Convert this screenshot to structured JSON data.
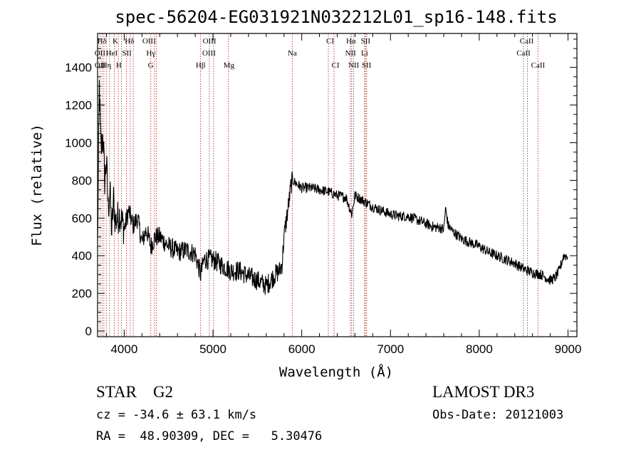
{
  "chart_data": {
    "type": "line",
    "title": "spec-56204-EG031921N032212L01_sp16-148.fits",
    "xlabel": "Wavelength (Å)",
    "ylabel": "Flux (relative)",
    "xlim": [
      3700,
      9100
    ],
    "ylim": [
      -30,
      1580
    ],
    "x_ticks": [
      4000,
      5000,
      6000,
      7000,
      8000,
      9000
    ],
    "x_tick_labels": [
      "4000",
      "5000",
      "6000",
      "7000",
      "8000",
      "9000"
    ],
    "y_ticks": [
      0,
      200,
      400,
      600,
      800,
      1000,
      1200,
      1400
    ],
    "y_tick_labels": [
      "0",
      "200",
      "400",
      "600",
      "800",
      "1000",
      "1200",
      "1400"
    ],
    "series": [
      {
        "name": "flux",
        "x": [
          3700,
          3720,
          3740,
          3760,
          3780,
          3800,
          3820,
          3840,
          3860,
          3880,
          3900,
          3950,
          4000,
          4050,
          4100,
          4150,
          4200,
          4250,
          4300,
          4350,
          4400,
          4500,
          4600,
          4700,
          4800,
          4861,
          4900,
          5000,
          5100,
          5200,
          5300,
          5400,
          5500,
          5600,
          5700,
          5750,
          5780,
          5800,
          5830,
          5860,
          5880,
          5900,
          5920,
          6000,
          6100,
          6200,
          6300,
          6400,
          6500,
          6563,
          6600,
          6700,
          6800,
          6900,
          7000,
          7100,
          7200,
          7300,
          7400,
          7500,
          7550,
          7600,
          7620,
          7650,
          7700,
          7800,
          7900,
          8000,
          8100,
          8200,
          8300,
          8400,
          8500,
          8600,
          8700,
          8800,
          8850,
          8900,
          8950,
          9000
        ],
        "y": [
          450,
          1300,
          950,
          1050,
          800,
          900,
          650,
          750,
          520,
          700,
          580,
          620,
          540,
          640,
          560,
          600,
          470,
          540,
          450,
          500,
          500,
          450,
          420,
          430,
          410,
          300,
          380,
          380,
          350,
          320,
          320,
          290,
          270,
          240,
          300,
          320,
          360,
          500,
          600,
          700,
          780,
          800,
          790,
          760,
          760,
          750,
          740,
          720,
          710,
          620,
          720,
          690,
          660,
          640,
          620,
          610,
          610,
          590,
          570,
          550,
          550,
          540,
          650,
          560,
          530,
          490,
          470,
          450,
          420,
          400,
          380,
          360,
          330,
          310,
          300,
          270,
          280,
          320,
          400,
          400
        ]
      }
    ],
    "line_markers": [
      {
        "label": "Hδ",
        "x": 3750,
        "row": 0
      },
      {
        "label": "K",
        "x": 3900,
        "row": 0
      },
      {
        "label": "Hδ",
        "x": 4060,
        "row": 0
      },
      {
        "label": "OIII",
        "x": 4280,
        "row": 0
      },
      {
        "label": "OIII",
        "x": 4960,
        "row": 0
      },
      {
        "label": "CI",
        "x": 6320,
        "row": 0
      },
      {
        "label": "Hα",
        "x": 6555,
        "row": 0
      },
      {
        "label": "SII",
        "x": 6720,
        "row": 0
      },
      {
        "label": "CaII",
        "x": 8535,
        "row": 0
      },
      {
        "label": "OII",
        "x": 3727,
        "row": 1
      },
      {
        "label": "HeI",
        "x": 3860,
        "row": 1
      },
      {
        "label": "SII",
        "x": 4030,
        "row": 1
      },
      {
        "label": "Hγ",
        "x": 4300,
        "row": 1
      },
      {
        "label": "OIII",
        "x": 4955,
        "row": 1
      },
      {
        "label": "Na",
        "x": 5893,
        "row": 1
      },
      {
        "label": "NII",
        "x": 6550,
        "row": 1
      },
      {
        "label": "Li",
        "x": 6708,
        "row": 1
      },
      {
        "label": "CaII",
        "x": 8498,
        "row": 1
      },
      {
        "label": "OII",
        "x": 3728,
        "row": 2
      },
      {
        "label": "Hη",
        "x": 3800,
        "row": 2
      },
      {
        "label": "H",
        "x": 3940,
        "row": 2
      },
      {
        "label": "G",
        "x": 4300,
        "row": 2
      },
      {
        "label": "Hβ",
        "x": 4861,
        "row": 2
      },
      {
        "label": "Mg",
        "x": 5180,
        "row": 2
      },
      {
        "label": "CI",
        "x": 6380,
        "row": 2
      },
      {
        "label": "NII",
        "x": 6585,
        "row": 2
      },
      {
        "label": "SII",
        "x": 6730,
        "row": 2
      },
      {
        "label": "CaII",
        "x": 8662,
        "row": 2
      }
    ],
    "marker_lines_x": [
      3727,
      3750,
      3771,
      3798,
      3835,
      3889,
      3934,
      3969,
      4026,
      4068,
      4102,
      4300,
      4341,
      4363,
      4861,
      4959,
      5007,
      5175,
      5893,
      6300,
      6364,
      6548,
      6563,
      6584,
      6708,
      6717,
      6731,
      8498,
      8542,
      8662
    ]
  },
  "info": {
    "object_type": "STAR    G2",
    "survey": "LAMOST DR3",
    "cz": "cz = -34.6 ± 63.1 km/s",
    "obs_date": "Obs-Date: 20121003",
    "ra_dec": "RA =  48.90309, DEC =   5.30476"
  },
  "colors": {
    "axis": "#000000",
    "spectrum": "#000000",
    "marker_line": "#a02020"
  }
}
